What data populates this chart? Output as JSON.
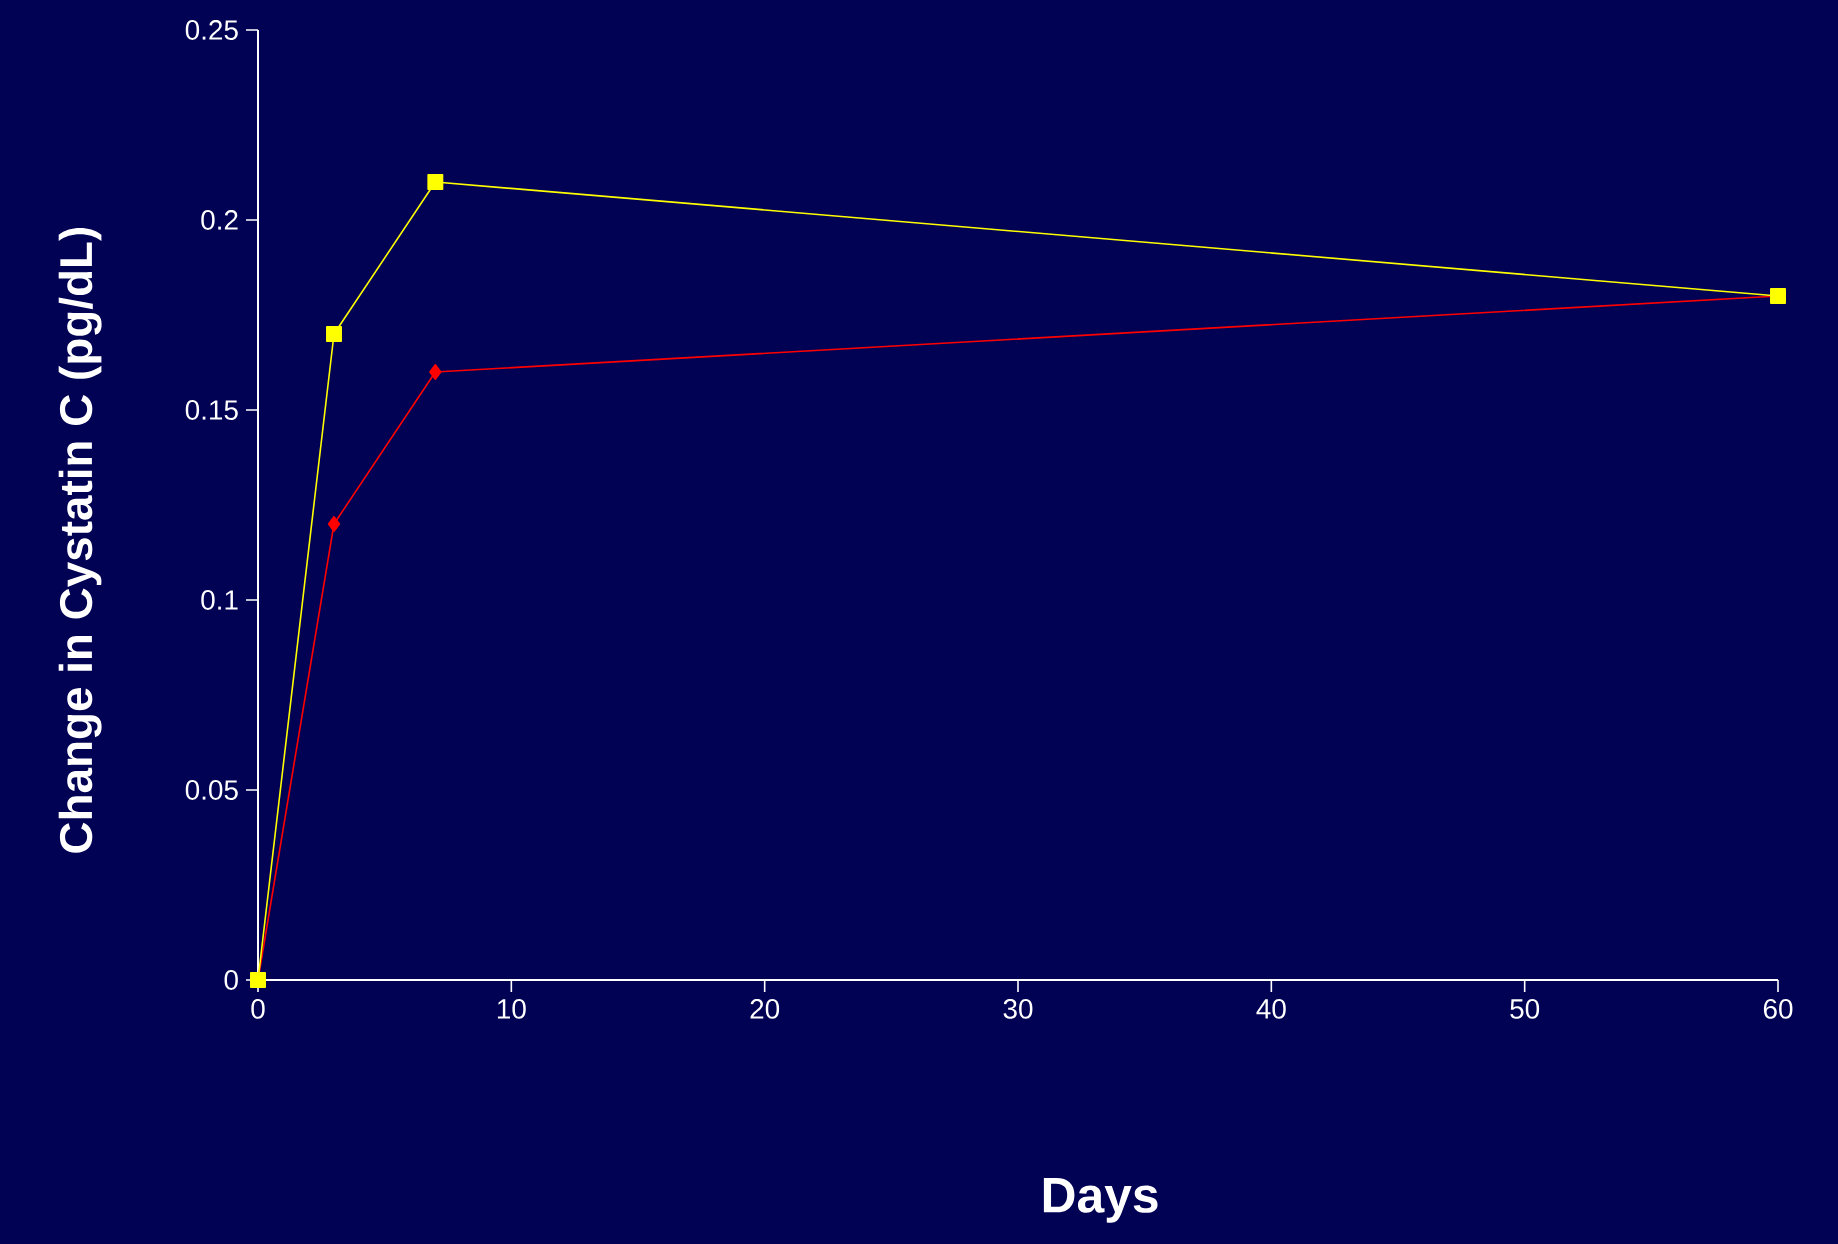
{
  "chart_data": {
    "type": "line",
    "xlabel": "Days",
    "ylabel": "Change in Cystatin C (pg/dL)",
    "x": [
      0,
      3,
      7,
      60
    ],
    "series": [
      {
        "color": "#ff0000",
        "marker": "diamond",
        "values": [
          0,
          0.12,
          0.16,
          0.18
        ]
      },
      {
        "color": "#ffff00",
        "marker": "square",
        "values": [
          0,
          0.17,
          0.21,
          0.18
        ]
      }
    ],
    "xlim": [
      0,
      60
    ],
    "xticks": [
      0,
      10,
      20,
      30,
      40,
      50,
      60
    ],
    "ylim": [
      0,
      0.25
    ],
    "yticks": [
      0,
      0.05,
      0.1,
      0.15,
      0.2,
      0.25
    ],
    "grid": false,
    "line_style": "solid"
  }
}
